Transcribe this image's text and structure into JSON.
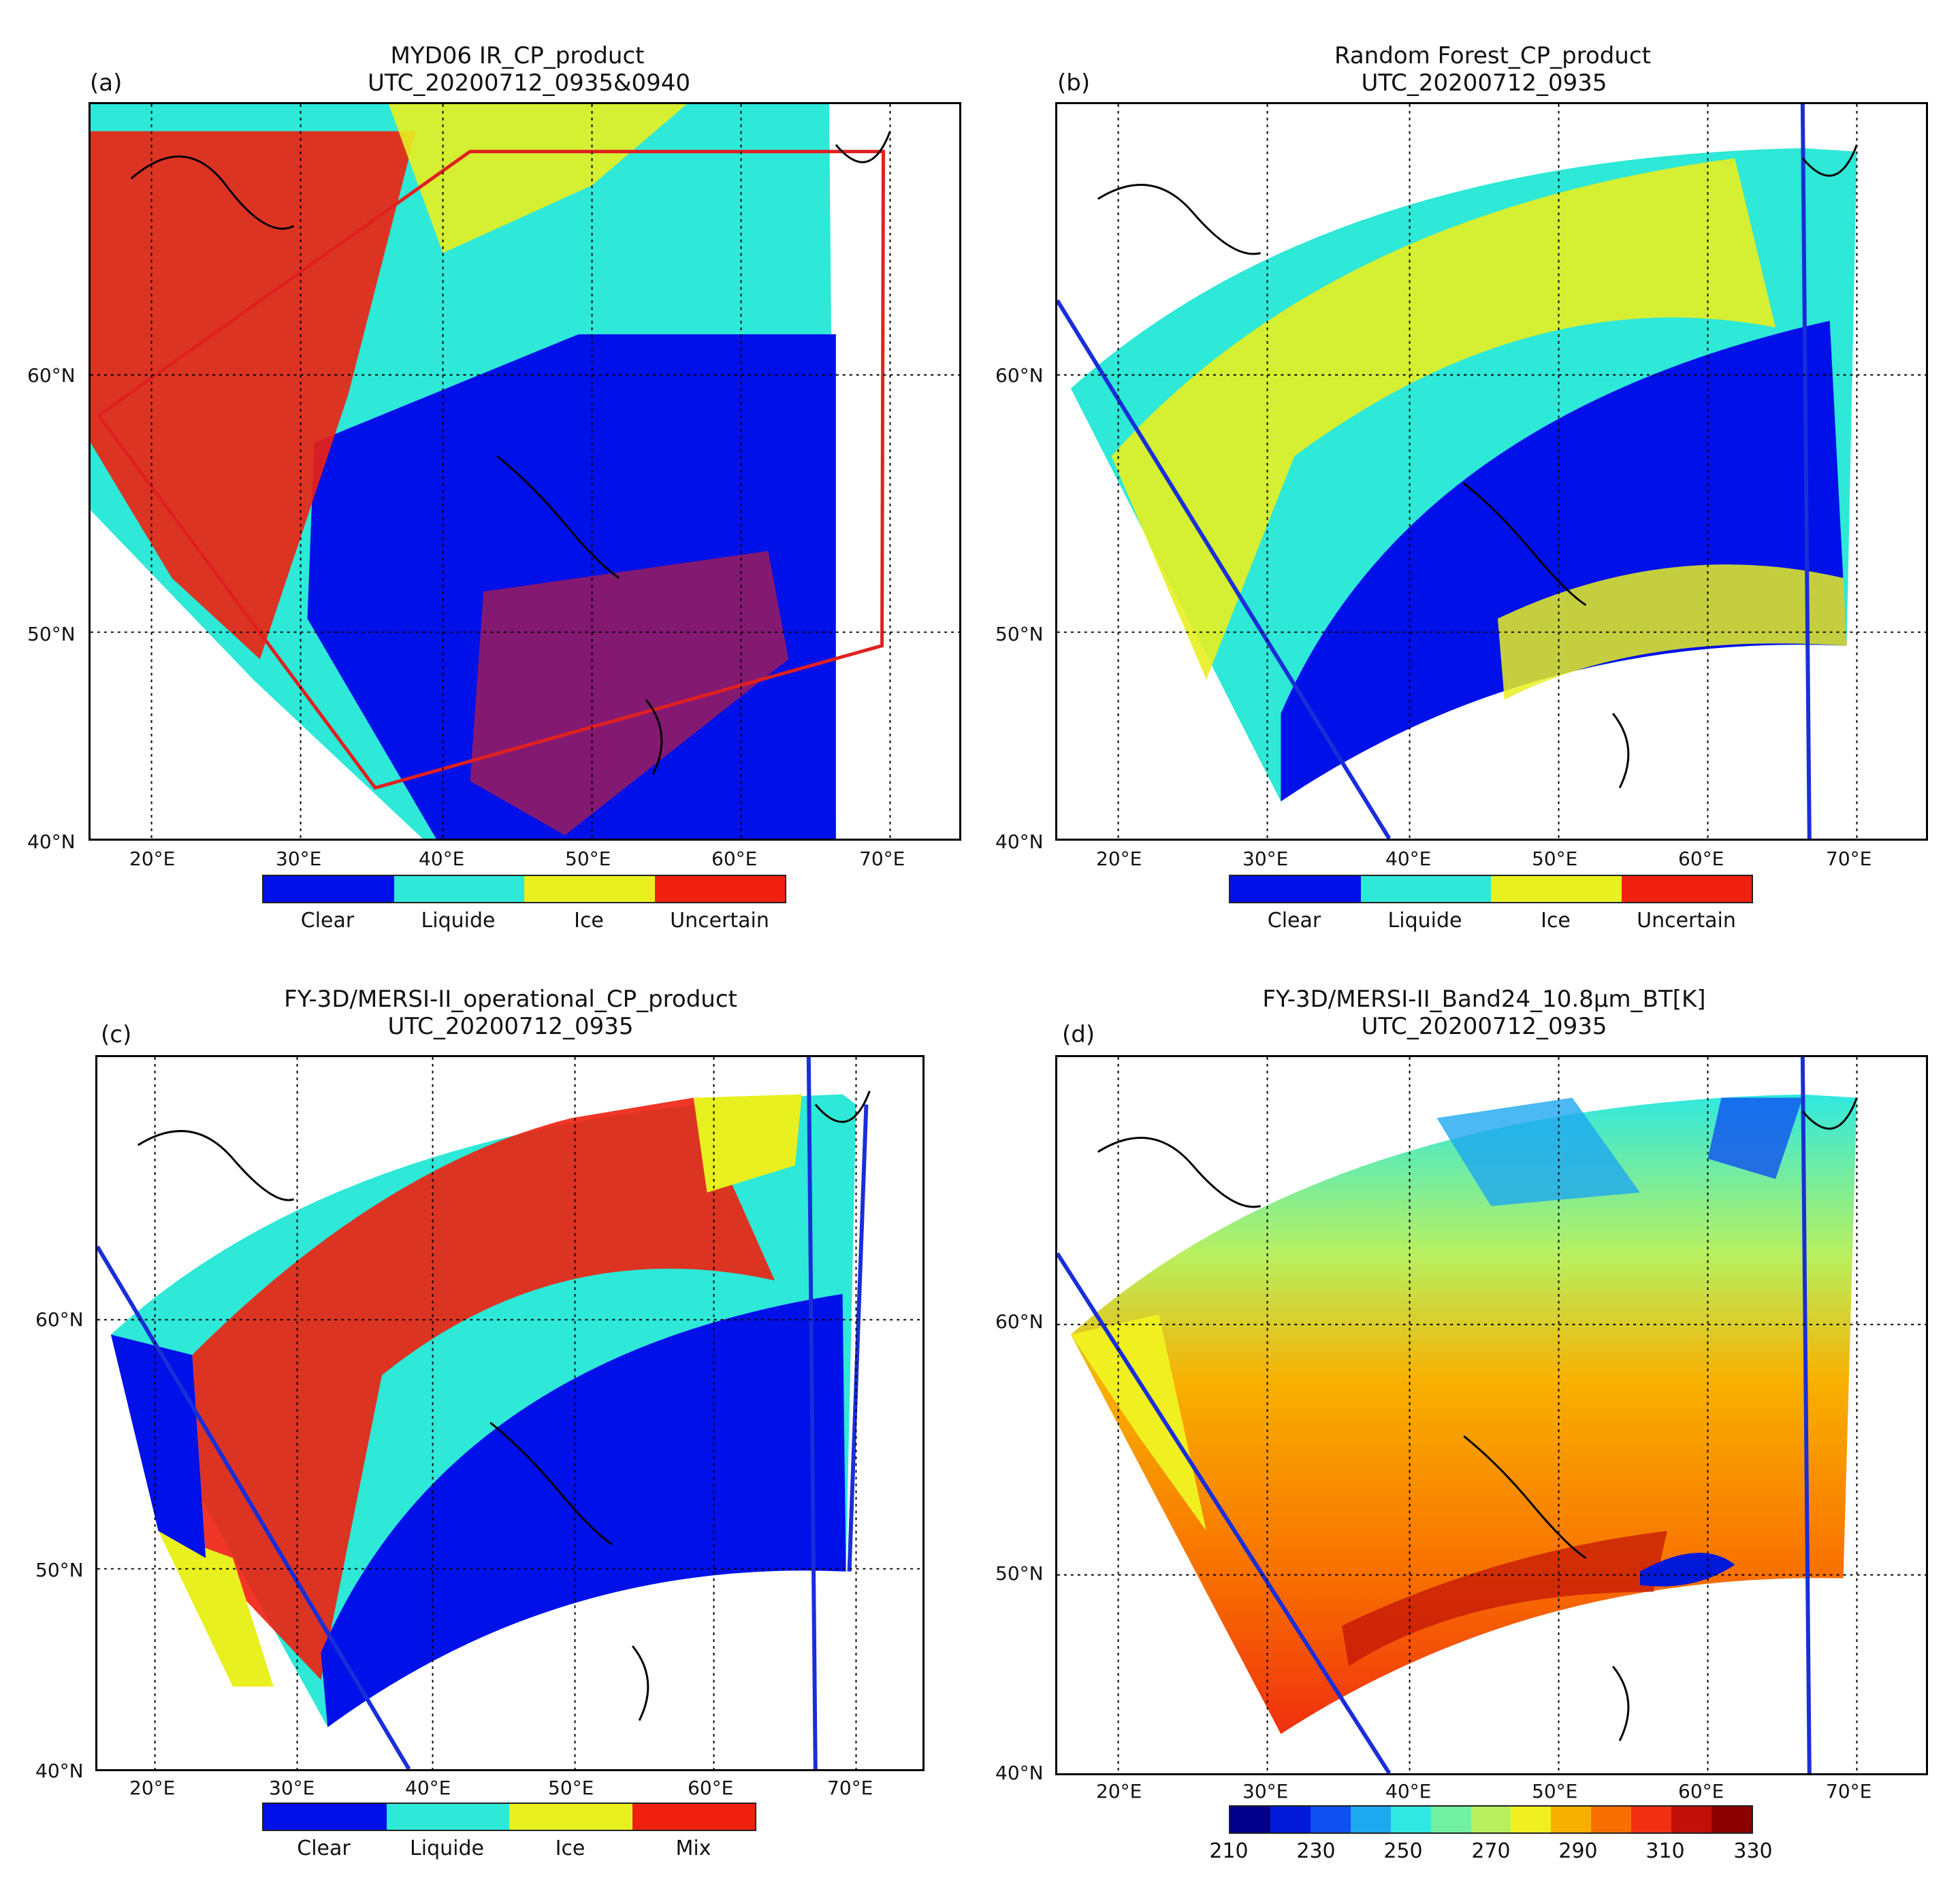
{
  "panels": [
    {
      "label": "(a)",
      "title1": "MYD06 IR_CP_product",
      "title2": "UTC_20200712_0935&0940",
      "lat_ticks": [
        "60°N",
        "50°N",
        "40°N"
      ],
      "lon_ticks": [
        "20°E",
        "30°E",
        "40°E",
        "50°E",
        "60°E",
        "70°E"
      ],
      "legend": [
        "Clear",
        "Liquide",
        "Ice",
        "Uncertain"
      ]
    },
    {
      "label": "(b)",
      "title1": "Random Forest_CP_product",
      "title2": "UTC_20200712_0935",
      "lat_ticks": [
        "60°N",
        "50°N",
        "40°N"
      ],
      "lon_ticks": [
        "20°E",
        "30°E",
        "40°E",
        "50°E",
        "60°E",
        "70°E"
      ],
      "legend": [
        "Clear",
        "Liquide",
        "Ice",
        "Uncertain"
      ]
    },
    {
      "label": "(c)",
      "title1": "FY-3D/MERSI-II_operational_CP_product",
      "title2": "UTC_20200712_0935",
      "lat_ticks": [
        "60°N",
        "50°N",
        "40°N"
      ],
      "lon_ticks": [
        "20°E",
        "30°E",
        "40°E",
        "50°E",
        "60°E",
        "70°E"
      ],
      "legend": [
        "Clear",
        "Liquide",
        "Ice",
        "Mix"
      ]
    },
    {
      "label": "(d)",
      "title1": "FY-3D/MERSI-II_Band24_10.8μm_BT[K]",
      "title2": "UTC_20200712_0935",
      "lat_ticks": [
        "60°N",
        "50°N",
        "40°N"
      ],
      "lon_ticks": [
        "20°E",
        "30°E",
        "40°E",
        "50°E",
        "60°E",
        "70°E"
      ],
      "colorbar_ticks": [
        "210",
        "230",
        "250",
        "270",
        "290",
        "310",
        "330"
      ]
    }
  ],
  "colors": {
    "clear": "#0010e8",
    "liquid": "#2ee8d8",
    "ice": "#e8f020",
    "uncertain": "#f02010",
    "frame_red": "#e02020",
    "orbit_blue": "#1a2ed8",
    "bt_scale": [
      "#00008b",
      "#0018d8",
      "#1050f0",
      "#1ea8f0",
      "#30e8e0",
      "#70f0a0",
      "#b8f060",
      "#f0f020",
      "#f8b000",
      "#f87000",
      "#f03010",
      "#c01008",
      "#8b0000"
    ]
  }
}
